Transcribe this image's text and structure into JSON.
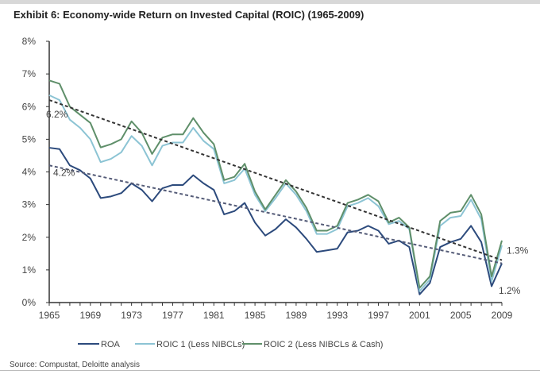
{
  "chart_data": {
    "type": "line",
    "title": "Exhibit 6:  Economy-wide Return on Invested Capital (ROIC) (1965-2009)",
    "source": "Source: Compustat, Deloitte analysis",
    "xlim": [
      1965,
      2009
    ],
    "ylim": [
      0,
      8
    ],
    "x_ticks": [
      "1965",
      "1969",
      "1973",
      "1977",
      "1981",
      "1985",
      "1989",
      "1993",
      "1997",
      "2001",
      "2005",
      "2009"
    ],
    "y_ticks": [
      "0%",
      "1%",
      "2%",
      "3%",
      "4%",
      "5%",
      "6%",
      "7%",
      "8%"
    ],
    "grid": false,
    "legend_position": "bottom",
    "x": [
      1965,
      1966,
      1967,
      1968,
      1969,
      1970,
      1971,
      1972,
      1973,
      1974,
      1975,
      1976,
      1977,
      1978,
      1979,
      1980,
      1981,
      1982,
      1983,
      1984,
      1985,
      1986,
      1987,
      1988,
      1989,
      1990,
      1991,
      1992,
      1993,
      1994,
      1995,
      1996,
      1997,
      1998,
      1999,
      2000,
      2001,
      2002,
      2003,
      2004,
      2005,
      2006,
      2007,
      2008,
      2009
    ],
    "series": [
      {
        "name": "ROA",
        "color": "#2c4a7c",
        "values": [
          4.74,
          4.7,
          4.2,
          4.05,
          3.8,
          3.2,
          3.25,
          3.35,
          3.65,
          3.45,
          3.1,
          3.5,
          3.6,
          3.6,
          3.9,
          3.65,
          3.45,
          2.7,
          2.8,
          3.05,
          2.45,
          2.05,
          2.25,
          2.55,
          2.3,
          1.95,
          1.55,
          1.6,
          1.65,
          2.15,
          2.2,
          2.35,
          2.2,
          1.8,
          1.9,
          1.7,
          0.25,
          0.6,
          1.7,
          1.85,
          1.95,
          2.35,
          1.85,
          0.5,
          1.2
        ]
      },
      {
        "name": "ROIC 1 (Less NIBCLs)",
        "color": "#8cc4d4",
        "values": [
          6.35,
          6.2,
          5.6,
          5.35,
          5.0,
          4.3,
          4.4,
          4.6,
          5.1,
          4.8,
          4.2,
          4.8,
          4.9,
          4.9,
          5.35,
          4.95,
          4.7,
          3.65,
          3.75,
          4.1,
          3.3,
          2.8,
          3.2,
          3.65,
          3.3,
          2.8,
          2.1,
          2.1,
          2.25,
          2.95,
          3.05,
          3.2,
          2.95,
          2.4,
          2.5,
          2.25,
          0.35,
          0.7,
          2.35,
          2.6,
          2.65,
          3.15,
          2.55,
          0.65,
          1.75
        ]
      },
      {
        "name": "ROIC 2 (Less NIBCLs & Cash)",
        "color": "#5f8f6a",
        "values": [
          6.8,
          6.7,
          6.0,
          5.75,
          5.5,
          4.75,
          4.85,
          5.0,
          5.55,
          5.2,
          4.55,
          5.05,
          5.15,
          5.15,
          5.65,
          5.2,
          4.85,
          3.75,
          3.85,
          4.25,
          3.4,
          2.85,
          3.3,
          3.75,
          3.4,
          2.9,
          2.2,
          2.2,
          2.35,
          3.05,
          3.15,
          3.3,
          3.1,
          2.45,
          2.6,
          2.3,
          0.45,
          0.8,
          2.5,
          2.75,
          2.8,
          3.3,
          2.7,
          0.8,
          1.9
        ]
      }
    ],
    "trendlines": [
      {
        "of": "ROIC 2 (Less NIBCLs & Cash)",
        "color": "#333333",
        "start": 6.2,
        "end": 1.3,
        "start_label": "6.2%",
        "end_label": "1.3%"
      },
      {
        "of": "ROA",
        "color": "#555c78",
        "start": 4.2,
        "end": 1.2,
        "start_label": "4.2%",
        "end_label": "1.2%"
      }
    ]
  }
}
